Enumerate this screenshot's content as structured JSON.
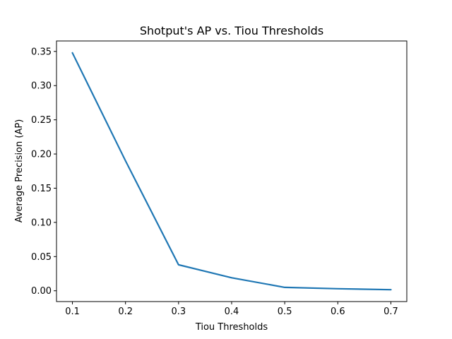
{
  "chart_data": {
    "type": "line",
    "title": "Shotput's AP vs. Tiou Thresholds",
    "xlabel": "Tiou Thresholds",
    "ylabel": "Average Precision (AP)",
    "x": [
      0.1,
      0.2,
      0.3,
      0.4,
      0.5,
      0.6,
      0.7
    ],
    "series": [
      {
        "values": [
          0.348,
          0.19,
          0.038,
          0.019,
          0.005,
          0.003,
          0.0015
        ],
        "color": "#1f77b4"
      }
    ],
    "xticks": [
      0.1,
      0.2,
      0.3,
      0.4,
      0.5,
      0.6,
      0.7
    ],
    "xtick_labels": [
      "0.1",
      "0.2",
      "0.3",
      "0.4",
      "0.5",
      "0.6",
      "0.7"
    ],
    "yticks": [
      0.0,
      0.05,
      0.1,
      0.15,
      0.2,
      0.25,
      0.3,
      0.35
    ],
    "ytick_labels": [
      "0.00",
      "0.05",
      "0.10",
      "0.15",
      "0.20",
      "0.25",
      "0.30",
      "0.35"
    ],
    "xlim": [
      0.07,
      0.73
    ],
    "ylim": [
      -0.0158,
      0.3653
    ],
    "grid": false,
    "legend": false
  }
}
